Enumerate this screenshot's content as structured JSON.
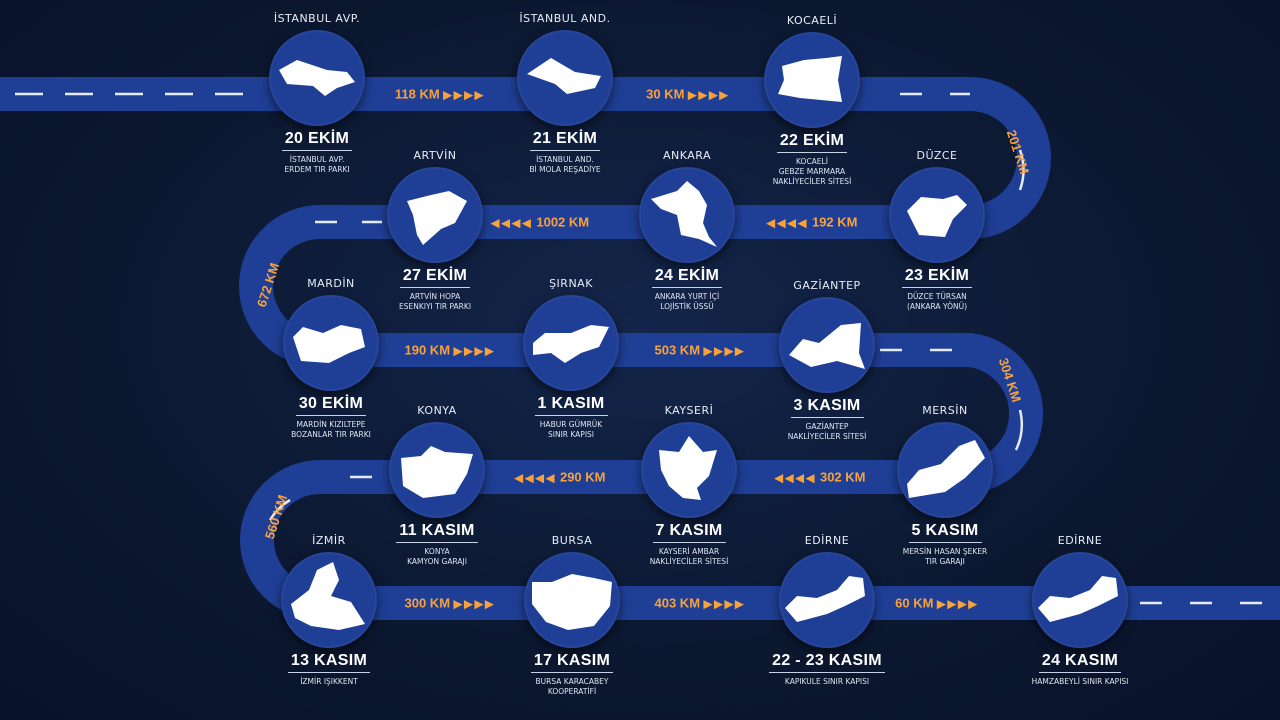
{
  "colors": {
    "background": "#0c1830",
    "road": "#1f3f96",
    "accent": "#f7a23b",
    "text": "#ffffff"
  },
  "stops": [
    {
      "city": "İSTANBUL AVP.",
      "date": "20 EKİM",
      "desc": "İSTANBUL AVP.\nERDEM TIR PARKI"
    },
    {
      "city": "İSTANBUL AND.",
      "date": "21 EKİM",
      "desc": "İSTANBUL AND.\nBİ MOLA REŞADİYE"
    },
    {
      "city": "KOCAELİ",
      "date": "22 EKİM",
      "desc": "KOCAELİ\nGEBZE MARMARA\nNAKLİYECİLER SİTESİ"
    },
    {
      "city": "DÜZCE",
      "date": "23 EKİM",
      "desc": "DÜZCE TÜRSAN\n(ANKARA YÖNÜ)"
    },
    {
      "city": "ANKARA",
      "date": "24 EKİM",
      "desc": "ANKARA YURT İÇİ\nLOJİSTİK ÜSSÜ"
    },
    {
      "city": "ARTVİN",
      "date": "27 EKİM",
      "desc": "ARTVİN HOPA\nESENKIYI TIR PARKI"
    },
    {
      "city": "MARDİN",
      "date": "30 EKİM",
      "desc": "MARDİN KIZILTEPE\nBOZANLAR TIR PARKI"
    },
    {
      "city": "ŞIRNAK",
      "date": "1 KASIM",
      "desc": "HABUR GÜMRÜK\nSINIR KAPISI"
    },
    {
      "city": "GAZİANTEP",
      "date": "3 KASIM",
      "desc": "GAZİANTEP\nNAKLİYECİLER SİTESİ"
    },
    {
      "city": "MERSİN",
      "date": "5 KASIM",
      "desc": "MERSİN HASAN ŞEKER\nTIR GARAJI"
    },
    {
      "city": "KAYSERİ",
      "date": "7 KASIM",
      "desc": "KAYSERİ AMBAR\nNAKLİYECİLER SİTESİ"
    },
    {
      "city": "KONYA",
      "date": "11 KASIM",
      "desc": "KONYA\nKAMYON GARAJI"
    },
    {
      "city": "İZMİR",
      "date": "13 KASIM",
      "desc": "İZMİR IŞIKKENT"
    },
    {
      "city": "BURSA",
      "date": "17 KASIM",
      "desc": "BURSA KARACABEY\nKOOPERATİFİ"
    },
    {
      "city": "EDİRNE",
      "date": "22 - 23 KASIM",
      "desc": "KAPIKULE SINIR KAPISI"
    },
    {
      "city": "EDİRNE",
      "date": "24 KASIM",
      "desc": "HAMZABEYLİ SINIR KAPISI"
    }
  ],
  "distances": [
    {
      "label": "118 KM",
      "direction": "right"
    },
    {
      "label": "30 KM",
      "direction": "right"
    },
    {
      "label": "201 KM",
      "direction": "curve"
    },
    {
      "label": "192 KM",
      "direction": "left"
    },
    {
      "label": "1002 KM",
      "direction": "left"
    },
    {
      "label": "672 KM",
      "direction": "curve"
    },
    {
      "label": "190 KM",
      "direction": "right"
    },
    {
      "label": "503 KM",
      "direction": "right"
    },
    {
      "label": "304 KM",
      "direction": "curve"
    },
    {
      "label": "302 KM",
      "direction": "left"
    },
    {
      "label": "290 KM",
      "direction": "left"
    },
    {
      "label": "560 KM",
      "direction": "curve"
    },
    {
      "label": "300 KM",
      "direction": "right"
    },
    {
      "label": "403 KM",
      "direction": "right"
    },
    {
      "label": "60 KM",
      "direction": "right"
    }
  ]
}
